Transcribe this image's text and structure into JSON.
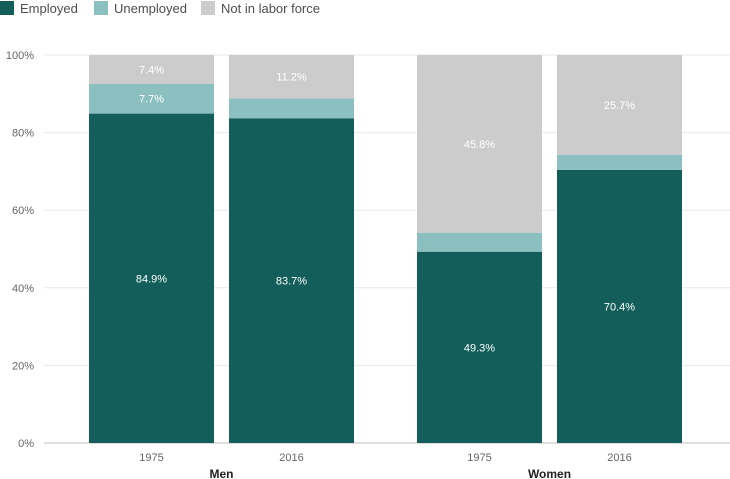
{
  "chart_data": {
    "type": "bar",
    "stacked": true,
    "y_format": "percent",
    "ylim": [
      0,
      100
    ],
    "yticks": [
      "0%",
      "20%",
      "40%",
      "60%",
      "80%",
      "100%"
    ],
    "ytick_values": [
      0,
      20,
      40,
      60,
      80,
      100
    ],
    "legend_position": "top-left",
    "grid": true,
    "groups": [
      {
        "label": "Men",
        "categories": [
          "1975",
          "2016"
        ]
      },
      {
        "label": "Women",
        "categories": [
          "1975",
          "2016"
        ]
      }
    ],
    "categories": [
      "1975",
      "2016",
      "1975",
      "2016"
    ],
    "series": [
      {
        "name": "Employed",
        "color": "#135e5a",
        "values": [
          84.9,
          83.7,
          49.3,
          70.4
        ],
        "labels": [
          "84.9%",
          "83.7%",
          "49.3%",
          "70.4%"
        ]
      },
      {
        "name": "Unemployed",
        "color": "#8cbfbf",
        "values": [
          7.7,
          5.1,
          4.9,
          3.9
        ],
        "labels": [
          "7.7%",
          "",
          "",
          ""
        ]
      },
      {
        "name": "Not in labor force",
        "color": "#cccccc",
        "values": [
          7.4,
          11.2,
          45.8,
          25.7
        ],
        "labels": [
          "7.4%",
          "11.2%",
          "45.8%",
          "25.7%"
        ]
      }
    ]
  }
}
